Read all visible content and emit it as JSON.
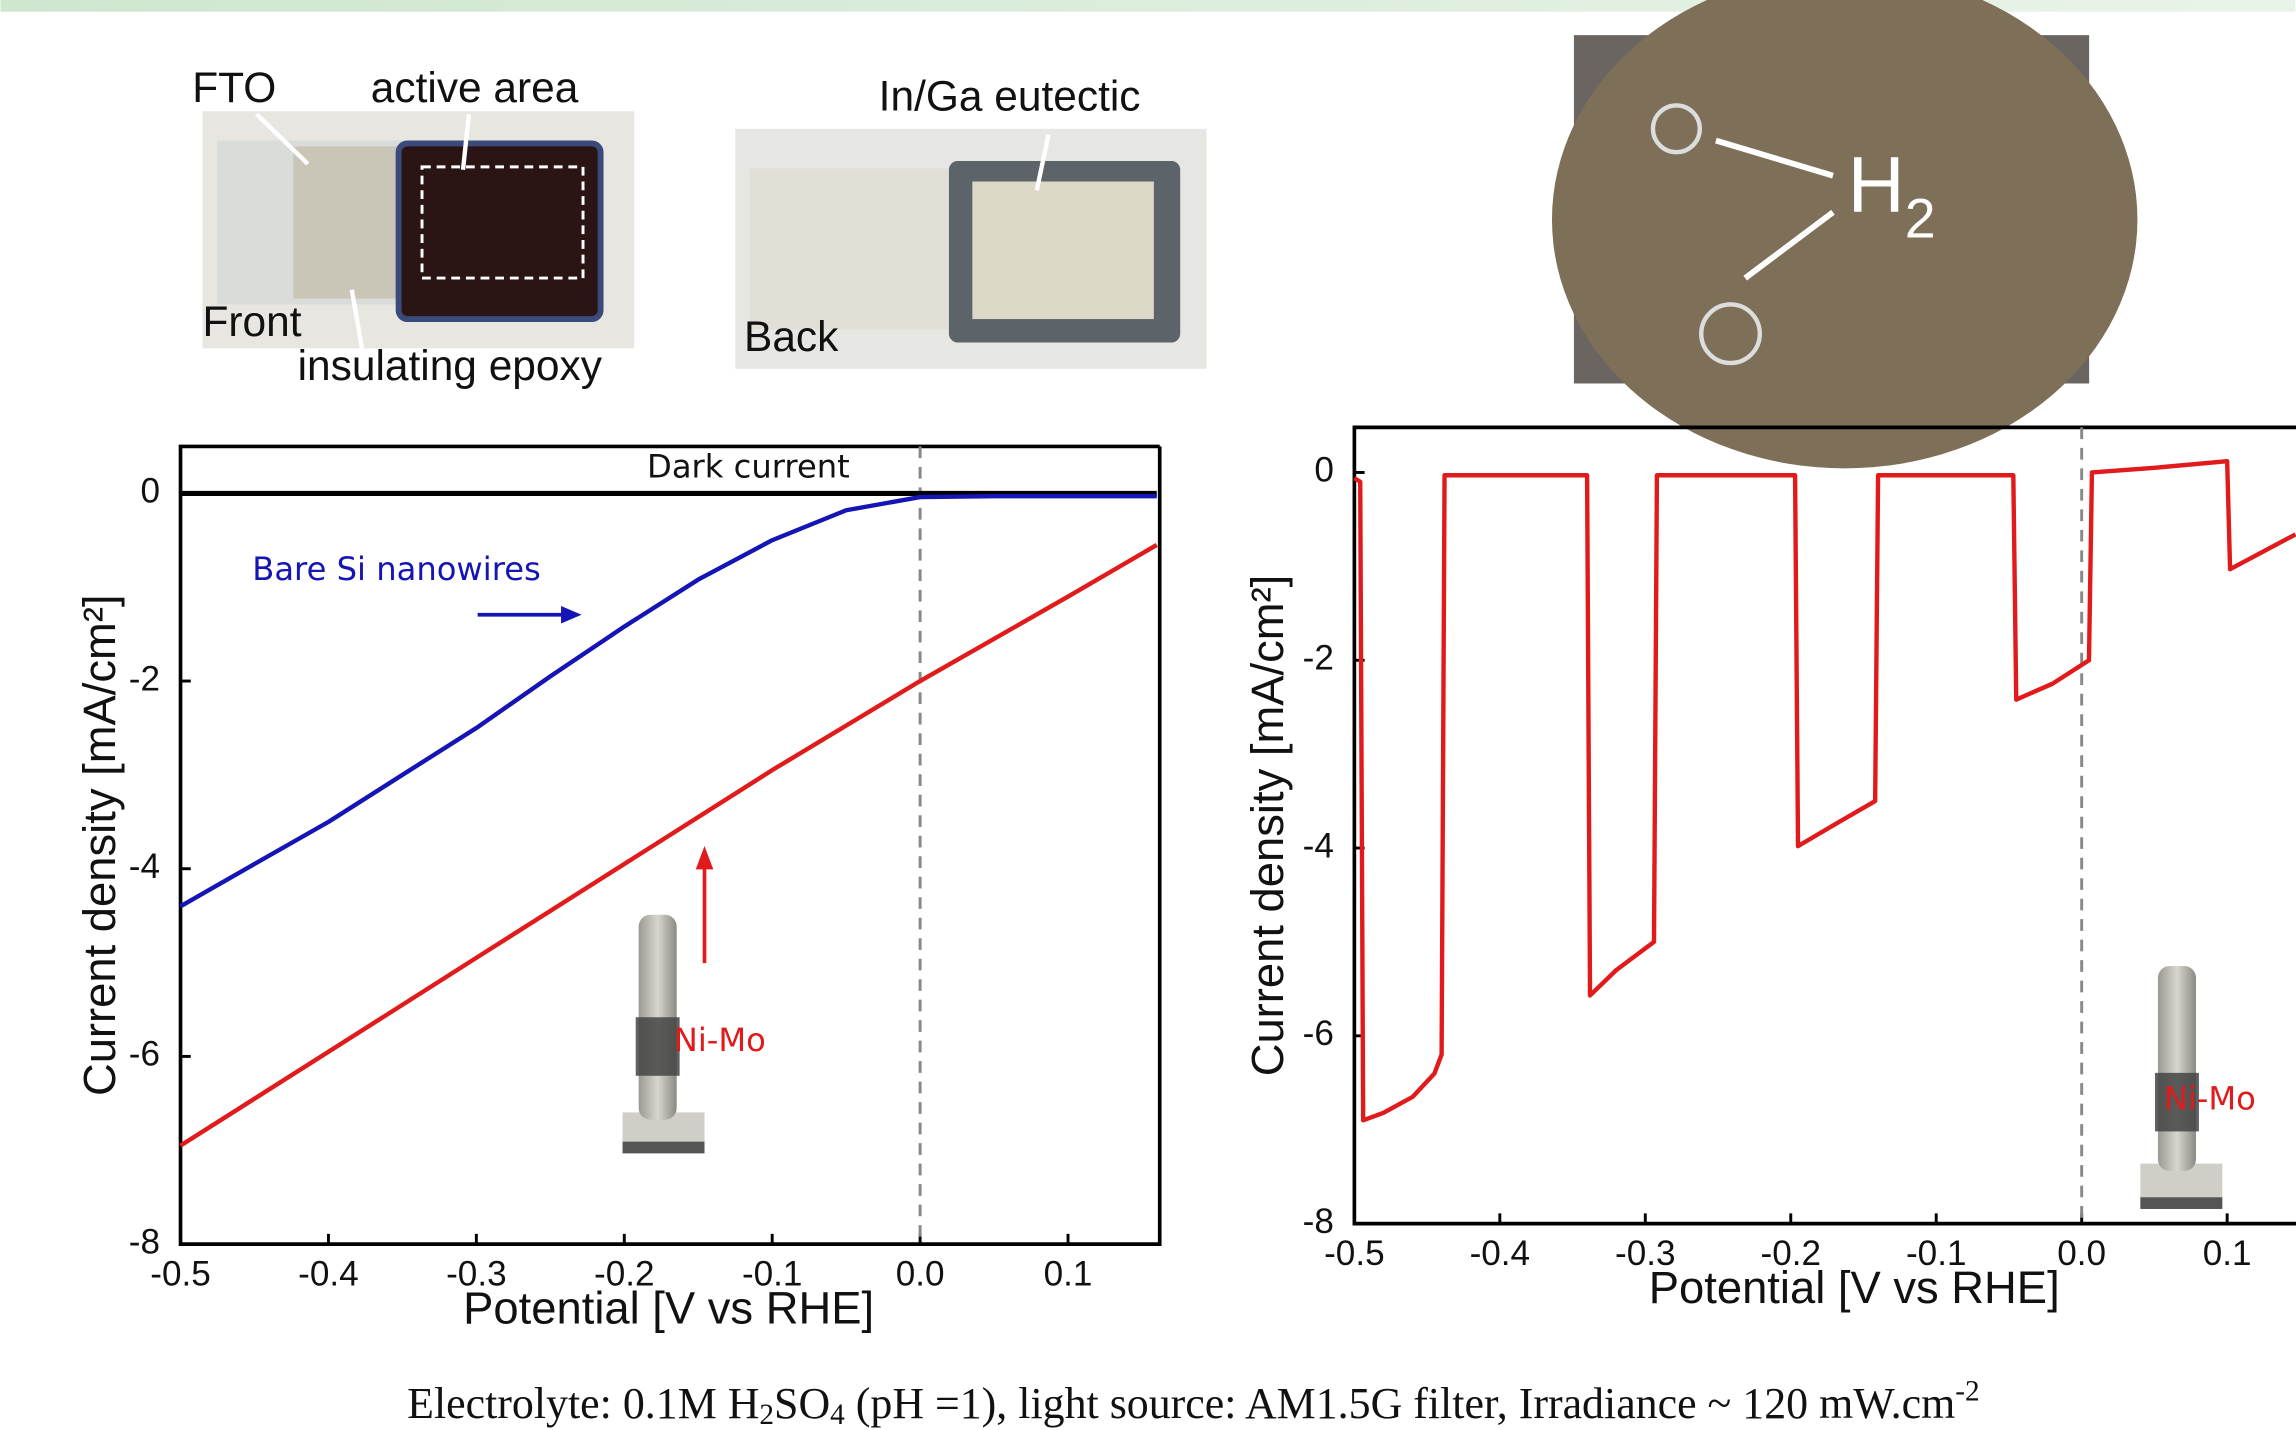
{
  "photos": {
    "labels": [
      "FTO",
      "active area",
      "Front",
      "insulating epoxy",
      "In/Ga eutectic",
      "Back"
    ],
    "bubbles": [
      "H",
      "2"
    ]
  },
  "chart_data": [
    {
      "type": "line",
      "xlabel": "Potential [V vs RHE]",
      "ylabel": "Current density [mA/cm²]",
      "xlim": [
        -0.5,
        0.16
      ],
      "ylim": [
        -8,
        0.5
      ],
      "xticks": [
        -0.5,
        -0.4,
        -0.3,
        -0.2,
        -0.1,
        {
          "value": 0,
          "label": "0.0"
        },
        0.1
      ],
      "yticks": [
        0,
        -2,
        -4,
        -6,
        -8
      ],
      "vline": 0,
      "series": [
        {
          "name": "Dark current",
          "color": "#000000",
          "x": [
            -0.5,
            0.16
          ],
          "values": [
            0,
            0
          ]
        },
        {
          "name": "Bare Si nanowires",
          "color": "#1515b5",
          "x": [
            -0.5,
            -0.45,
            -0.4,
            -0.35,
            -0.3,
            -0.25,
            -0.2,
            -0.15,
            -0.1,
            -0.05,
            0,
            0.05,
            0.1,
            0.16
          ],
          "values": [
            -4.4,
            -3.95,
            -3.5,
            -3.0,
            -2.5,
            -1.95,
            -1.42,
            -0.92,
            -0.5,
            -0.18,
            -0.04,
            -0.03,
            -0.03,
            -0.03
          ]
        },
        {
          "name": "Ni-Mo",
          "color": "#e11b1b",
          "x": [
            -0.5,
            -0.4,
            -0.3,
            -0.2,
            -0.1,
            0,
            0.1,
            0.16
          ],
          "values": [
            -6.95,
            -5.95,
            -4.95,
            -3.95,
            -2.95,
            -2.0,
            -1.1,
            -0.55
          ]
        }
      ]
    },
    {
      "type": "line",
      "xlabel": "Potential [V vs RHE]",
      "ylabel": "Current density [mA/cm²]",
      "xlim": [
        -0.5,
        0.147
      ],
      "ylim": [
        -8,
        0.48
      ],
      "xticks": [
        -0.5,
        -0.4,
        -0.3,
        -0.2,
        -0.1,
        {
          "value": 0,
          "label": "0.0"
        },
        0.1
      ],
      "yticks": [
        0,
        -2,
        -4,
        -6,
        -8
      ],
      "vline": 0,
      "series": [
        {
          "name": "Ni-Mo",
          "color": "#e11b1b",
          "x": [
            -0.5,
            -0.496,
            -0.494,
            -0.48,
            -0.46,
            -0.445,
            -0.44,
            -0.438,
            -0.34,
            -0.338,
            -0.32,
            -0.294,
            -0.292,
            -0.197,
            -0.195,
            -0.17,
            -0.142,
            -0.14,
            -0.047,
            -0.045,
            -0.02,
            0.005,
            0.007,
            0.05,
            0.1,
            0.102,
            0.147
          ],
          "values": [
            -0.06,
            -0.1,
            -6.9,
            -6.82,
            -6.65,
            -6.4,
            -6.2,
            -0.03,
            -0.03,
            -5.57,
            -5.3,
            -5.0,
            -0.03,
            -0.03,
            -3.98,
            -3.75,
            -3.5,
            -0.03,
            -0.03,
            -2.42,
            -2.25,
            -2.0,
            0,
            0.05,
            0.12,
            -1.03,
            -0.66
          ]
        }
      ]
    }
  ],
  "caption": [
    "Electrolyte: 0.1M H",
    "2",
    "SO",
    "4",
    " (pH =1), light source: AM1.5G filter, Irradiance ~ 120 mW.cm",
    "-2"
  ]
}
